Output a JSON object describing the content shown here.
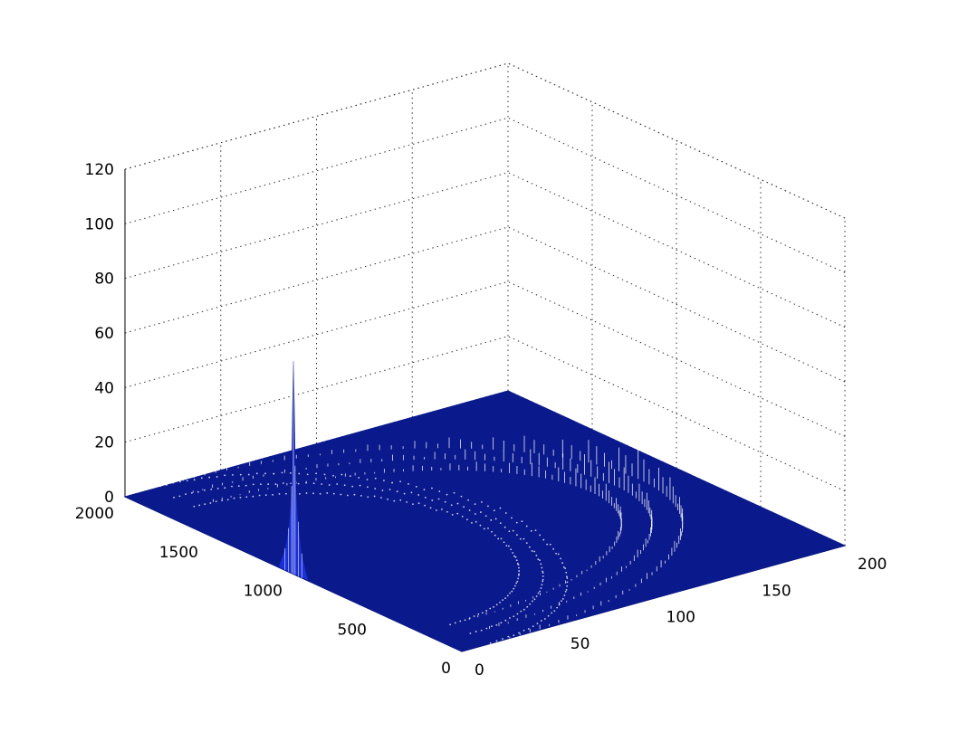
{
  "chart_data": {
    "type": "surface",
    "title": "",
    "xlabel": "",
    "ylabel": "",
    "zlabel": "",
    "x_axis": {
      "ticks": [
        0,
        50,
        100,
        150,
        200
      ],
      "tick_labels": [
        "0",
        "50",
        "100",
        "150",
        "200"
      ],
      "range": [
        0,
        200
      ]
    },
    "y_axis": {
      "ticks": [
        0,
        500,
        1000,
        1500,
        2000
      ],
      "tick_labels": [
        "0",
        "500",
        "1000",
        "1500",
        "2000"
      ],
      "range": [
        0,
        2000
      ]
    },
    "z_axis": {
      "ticks": [
        0,
        20,
        40,
        60,
        80,
        100,
        120
      ],
      "tick_labels": [
        "0",
        "20",
        "40",
        "60",
        "80",
        "100",
        "120"
      ],
      "range": [
        0,
        120
      ]
    },
    "grid": true,
    "surface_color": "#0a1a8c",
    "mesh_color": "#ffffff",
    "peak": {
      "x": 0,
      "y": 1000,
      "z": 78
    },
    "features": {
      "spike_profile": [
        {
          "y": 1000,
          "z": 78
        },
        {
          "y": 990,
          "z": 40
        },
        {
          "y": 1010,
          "z": 32
        },
        {
          "y": 970,
          "z": 20
        },
        {
          "y": 1030,
          "z": 16
        },
        {
          "y": 950,
          "z": 9
        },
        {
          "y": 1050,
          "z": 8
        }
      ],
      "ridge_bands": [
        {
          "y_center": 1000,
          "y_half_width": 1000,
          "peak_z": 12
        },
        {
          "y_center": 1000,
          "y_half_width": 880,
          "peak_z": 10
        },
        {
          "y_center": 1000,
          "y_half_width": 760,
          "peak_z": 8
        }
      ]
    }
  }
}
